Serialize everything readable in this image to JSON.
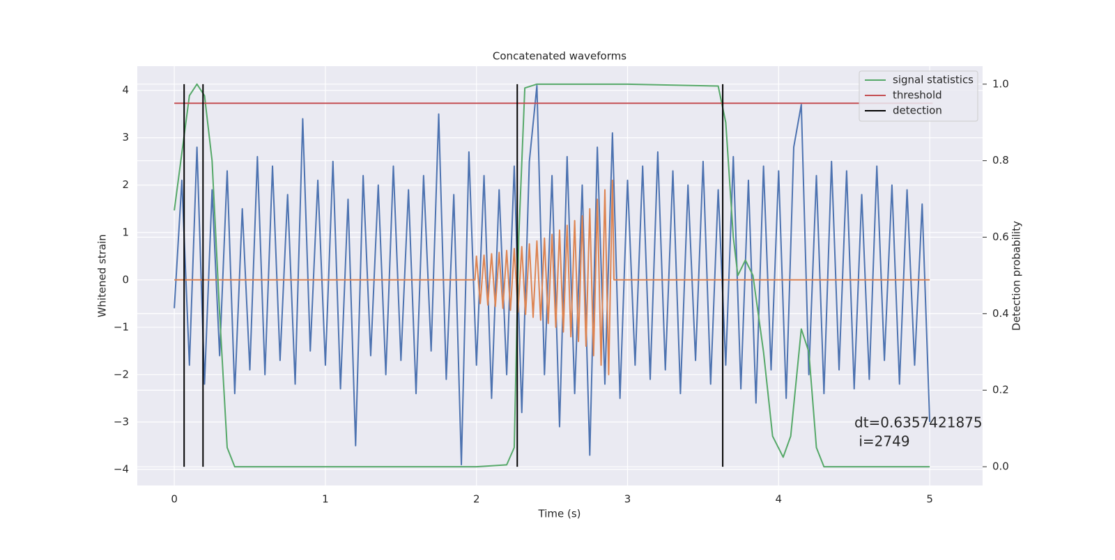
{
  "chart_data": {
    "type": "line",
    "title": "Concatenated waveforms",
    "xlabel": "Time (s)",
    "ylabel": "Whitened strain",
    "y2label": "Detection probability",
    "xlim": [
      -0.245,
      5.35
    ],
    "ylim": [
      -4.34,
      4.51
    ],
    "y2lim": [
      -0.049,
      1.047
    ],
    "xticks": [
      0,
      1,
      2,
      3,
      4,
      5
    ],
    "yticks": [
      {
        "value": -4,
        "label": "−4"
      },
      {
        "value": -3,
        "label": "−3"
      },
      {
        "value": -2,
        "label": "−2"
      },
      {
        "value": -1,
        "label": "−1"
      },
      0,
      1,
      2,
      3,
      4
    ],
    "y2ticks": [
      {
        "value": 0,
        "label": "0.0"
      },
      0.2,
      0.4,
      0.6,
      0.8,
      {
        "value": 1,
        "label": "1.0"
      }
    ],
    "grid": true,
    "legend": "upper right",
    "background": "#eaeaf2",
    "series": [
      {
        "color": "#4c72b0",
        "x": [
          0,
          0.05,
          0.1,
          0.15,
          0.2,
          0.25,
          0.3,
          0.35,
          0.4,
          0.45,
          0.5,
          0.55,
          0.6,
          0.65,
          0.7,
          0.75,
          0.8,
          0.85,
          0.9,
          0.95,
          1,
          1.05,
          1.1,
          1.15,
          1.2,
          1.25,
          1.3,
          1.35,
          1.4,
          1.45,
          1.5,
          1.55,
          1.6,
          1.65,
          1.7,
          1.75,
          1.8,
          1.85,
          1.9,
          1.95,
          2,
          2.05,
          2.1,
          2.15,
          2.2,
          2.25,
          2.3,
          2.35,
          2.4,
          2.45,
          2.5,
          2.55,
          2.6,
          2.65,
          2.7,
          2.75,
          2.8,
          2.85,
          2.9,
          2.95,
          3,
          3.05,
          3.1,
          3.15,
          3.2,
          3.25,
          3.3,
          3.35,
          3.4,
          3.45,
          3.5,
          3.55,
          3.6,
          3.65,
          3.7,
          3.75,
          3.8,
          3.85,
          3.9,
          3.95,
          4,
          4.05,
          4.1,
          4.15,
          4.2,
          4.25,
          4.3,
          4.35,
          4.4,
          4.45,
          4.5,
          4.55,
          4.6,
          4.65,
          4.7,
          4.75,
          4.8,
          4.85,
          4.9,
          4.95,
          5
        ],
        "values": [
          -0.6,
          2.1,
          -1.8,
          2.8,
          -2.2,
          1.9,
          -1.6,
          2.3,
          -2.4,
          1.5,
          -1.9,
          2.6,
          -2.0,
          2.4,
          -1.7,
          1.8,
          -2.2,
          3.4,
          -1.5,
          2.1,
          -1.8,
          2.5,
          -2.3,
          1.7,
          -3.5,
          2.2,
          -1.6,
          2.0,
          -2.0,
          2.4,
          -1.7,
          1.9,
          -2.4,
          2.2,
          -1.5,
          3.5,
          -2.1,
          1.8,
          -3.9,
          2.7,
          -1.8,
          2.2,
          -2.5,
          1.9,
          -2.0,
          2.4,
          -2.8,
          2.5,
          4.1,
          -2.0,
          2.2,
          -3.1,
          2.6,
          -2.4,
          2.0,
          -3.7,
          2.8,
          -2.2,
          3.1,
          -2.5,
          2.1,
          -1.8,
          2.4,
          -2.1,
          2.7,
          -1.9,
          2.3,
          -2.4,
          2.0,
          -1.7,
          2.5,
          -2.2,
          1.9,
          -1.8,
          2.6,
          -2.3,
          2.1,
          -2.6,
          2.4,
          -1.9,
          2.3,
          -2.5,
          2.8,
          3.7,
          -2.0,
          2.2,
          -2.4,
          2.5,
          -1.9,
          2.3,
          -2.3,
          1.8,
          -2.1,
          2.4,
          -1.7,
          2.0,
          -2.2,
          1.9,
          -1.8,
          1.6,
          -3.0
        ]
      },
      {
        "color": "#dd8452",
        "x": [
          0,
          1.99,
          2.0,
          2.025,
          2.05,
          2.075,
          2.1,
          2.125,
          2.15,
          2.175,
          2.2,
          2.225,
          2.25,
          2.275,
          2.3,
          2.325,
          2.35,
          2.375,
          2.4,
          2.425,
          2.45,
          2.475,
          2.5,
          2.525,
          2.55,
          2.575,
          2.6,
          2.625,
          2.65,
          2.675,
          2.7,
          2.725,
          2.75,
          2.775,
          2.8,
          2.825,
          2.85,
          2.875,
          2.9,
          2.91,
          5.0
        ],
        "values": [
          0,
          0,
          0.5,
          -0.5,
          0.52,
          -0.53,
          0.55,
          -0.56,
          0.58,
          -0.6,
          0.62,
          -0.64,
          0.66,
          -0.68,
          0.7,
          -0.73,
          0.76,
          -0.79,
          0.82,
          -0.85,
          0.88,
          -0.92,
          0.96,
          -1.0,
          1.05,
          -1.1,
          1.15,
          -1.2,
          1.25,
          -1.3,
          1.35,
          -1.4,
          1.5,
          -1.6,
          1.7,
          -1.8,
          1.9,
          -2.0,
          2.1,
          0,
          0
        ]
      },
      {
        "name": "signal statistics",
        "color": "#55a868",
        "axis": "y2",
        "x": [
          0,
          0.05,
          0.1,
          0.15,
          0.2,
          0.25,
          0.3,
          0.35,
          0.4,
          1.0,
          2.0,
          2.2,
          2.25,
          2.28,
          2.32,
          2.4,
          3.0,
          3.6,
          3.65,
          3.7,
          3.73,
          3.78,
          3.83,
          3.9,
          3.96,
          4.03,
          4.08,
          4.15,
          4.2,
          4.25,
          4.3,
          5.0
        ],
        "values": [
          0.67,
          0.82,
          0.97,
          1.0,
          0.97,
          0.8,
          0.4,
          0.05,
          0.0,
          0.0,
          0.0,
          0.005,
          0.05,
          0.6,
          0.99,
          1.0,
          1.0,
          0.995,
          0.9,
          0.6,
          0.5,
          0.54,
          0.5,
          0.3,
          0.08,
          0.025,
          0.08,
          0.36,
          0.3,
          0.05,
          0.0,
          0.0
        ]
      },
      {
        "name": "threshold",
        "color": "#c44e52",
        "axis": "y2",
        "x": [
          0,
          5.02
        ],
        "values": [
          0.95,
          0.95
        ]
      },
      {
        "name": "detection",
        "color": "#000000",
        "axis": "y2",
        "kind": "vlines",
        "x": [
          0.065,
          0.19,
          2.27,
          3.63
        ],
        "ymin": 0,
        "ymax": 1
      }
    ],
    "annotation": [
      "dt=0.6357421875",
      " i=2749"
    ]
  }
}
